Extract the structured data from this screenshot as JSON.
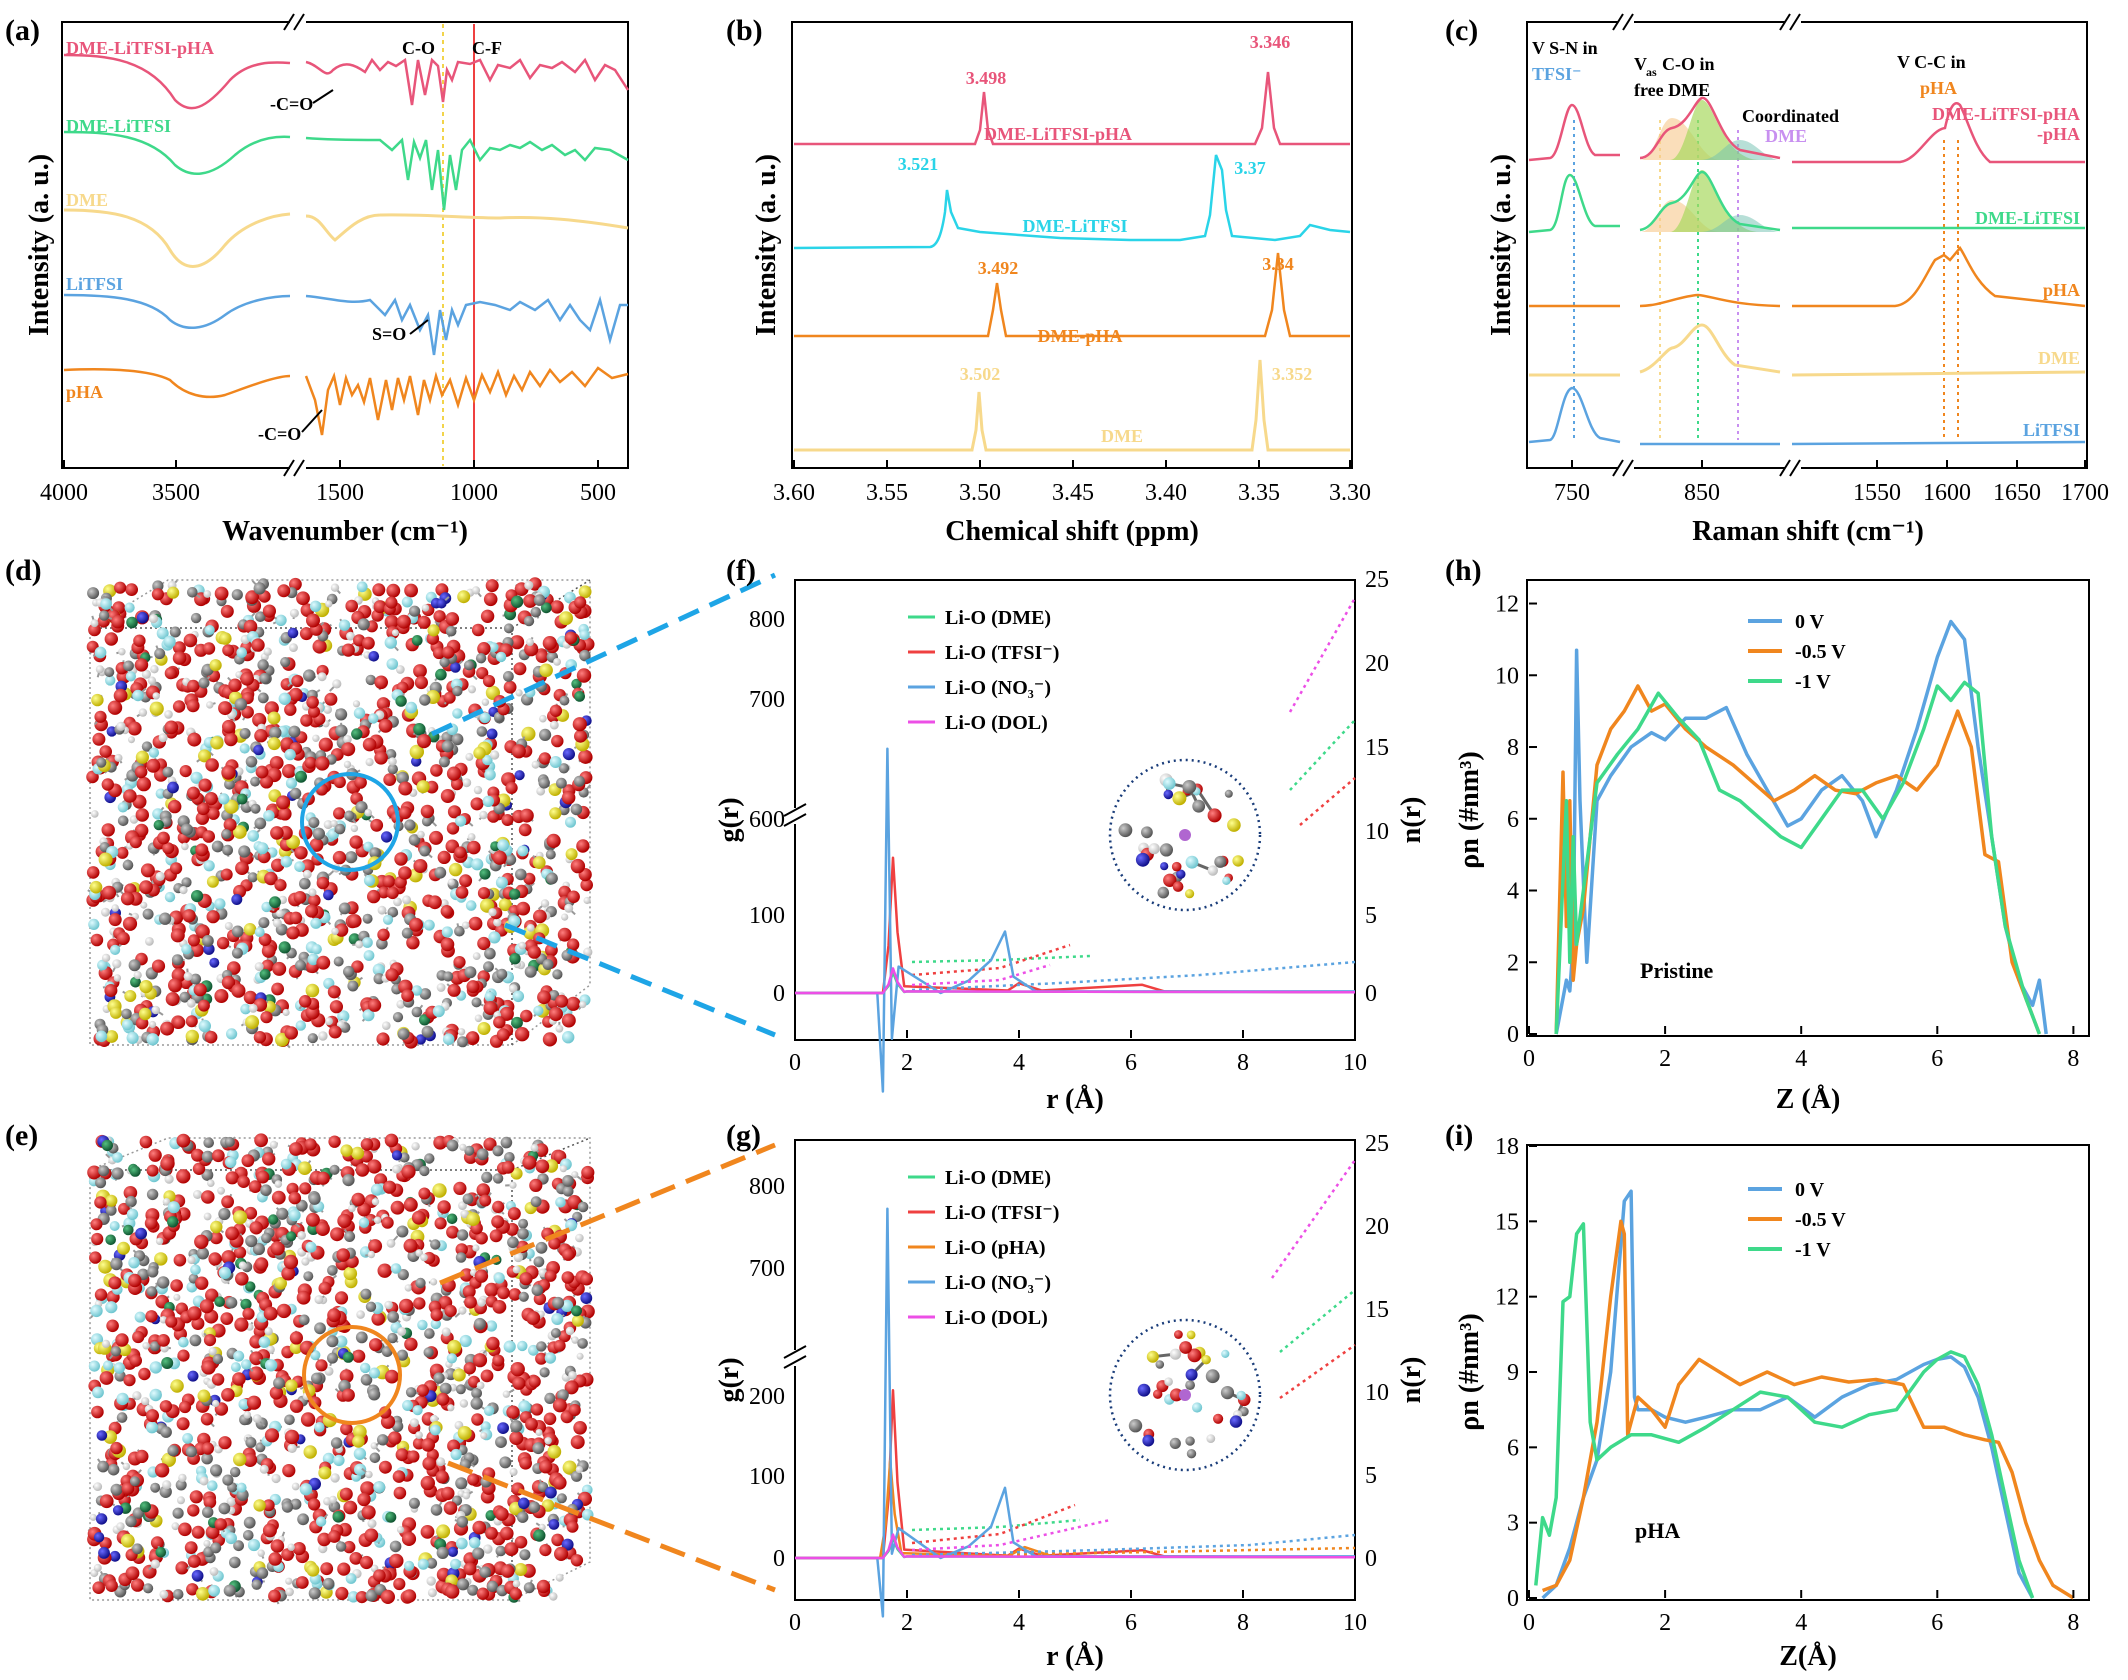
{
  "colors": {
    "pink": "#e8557a",
    "green": "#3ed98a",
    "yellow": "#f7d98c",
    "blue": "#5ba3e0",
    "orange": "#f0861e",
    "red": "#ef4040",
    "cyan": "#2ad4e8",
    "magenta": "#ec4fe6",
    "pinkB": "#e8557a",
    "oxygen": "#e11a1a",
    "carbon": "#888888",
    "hydrogen": "#eeeeee",
    "fluorine": "#a6e8f0",
    "sulfur": "#f2e200",
    "nitrogen": "#1a1acc",
    "lithium": "#1c8a4c"
  },
  "panels": {
    "a": "(a)",
    "b": "(b)",
    "c": "(c)",
    "d": "(d)",
    "e": "(e)",
    "f": "(f)",
    "g": "(g)",
    "h": "(h)",
    "i": "(i)"
  },
  "chart_data": [
    {
      "id": "a",
      "type": "line",
      "xlabel": "Wavenumber (cm⁻¹)",
      "ylabel": "Intensity (a. u.)",
      "xticks": [
        "4000",
        "3500",
        "1500",
        "1000",
        "500"
      ],
      "series": [
        {
          "name": "DME-LiTFSI-pHA",
          "color": "pink"
        },
        {
          "name": "DME-LiTFSI",
          "color": "green"
        },
        {
          "name": "DME",
          "color": "yellow"
        },
        {
          "name": "LiTFSI",
          "color": "blue"
        },
        {
          "name": "pHA",
          "color": "orange"
        }
      ],
      "annotations": [
        "C-O",
        "C-F",
        "-C=O",
        "S=O",
        "-C=O"
      ]
    },
    {
      "id": "b",
      "type": "line",
      "xlabel": "Chemical shift (ppm)",
      "ylabel": "Intensity (a. u.)",
      "xlim": [
        3.6,
        3.3
      ],
      "xticks": [
        "3.60",
        "3.55",
        "3.50",
        "3.45",
        "3.40",
        "3.35",
        "3.30"
      ],
      "series": [
        {
          "name": "DME-LiTFSI-pHA",
          "color": "pink",
          "peaks": [
            3.498,
            3.346
          ],
          "peak_labels": [
            "3.498",
            "3.346"
          ]
        },
        {
          "name": "DME-LiTFSI",
          "color": "cyan",
          "peaks": [
            3.521,
            3.37
          ],
          "peak_labels": [
            "3.521",
            "3.37"
          ]
        },
        {
          "name": "DME-pHA",
          "color": "orange",
          "peaks": [
            3.492,
            3.34
          ],
          "peak_labels": [
            "3.492",
            "3.34"
          ]
        },
        {
          "name": "DME",
          "color": "yellow",
          "peaks": [
            3.502,
            3.352
          ],
          "peak_labels": [
            "3.502",
            "3.352"
          ]
        }
      ]
    },
    {
      "id": "c",
      "type": "line",
      "xlabel": "Raman shift (cm⁻¹)",
      "ylabel": "Intensity (a. u.)",
      "xticks": [
        "750",
        "850",
        "1550",
        "1600",
        "1650",
        "1700"
      ],
      "series": [
        {
          "name": "DME-LiTFSI-pHA",
          "color": "pink"
        },
        {
          "name": "DME-LiTFSI",
          "color": "green"
        },
        {
          "name": "pHA",
          "color": "orange"
        },
        {
          "name": "DME",
          "color": "yellow"
        },
        {
          "name": "LiTFSI",
          "color": "blue"
        }
      ],
      "annotations": [
        "V S-N in",
        "TFSI⁻",
        "V",
        "as",
        "C-O in",
        "free DME",
        "Coordinated",
        "DME",
        "V C-C in",
        "pHA"
      ]
    },
    {
      "id": "f",
      "type": "line",
      "xlabel": "r (Å)",
      "ylabel": "g(r)",
      "y2label": "n(r)",
      "xlim": [
        0,
        10
      ],
      "xticks": [
        "0",
        "2",
        "4",
        "6",
        "8",
        "10"
      ],
      "yticks_upper": [
        "600",
        "700",
        "800"
      ],
      "yticks_lower": [
        "0",
        "100"
      ],
      "y2ticks": [
        "0",
        "5",
        "10",
        "15",
        "20",
        "25"
      ],
      "series": [
        {
          "name": "Li-O (DME)",
          "color": "green",
          "peak_r": 1.75,
          "peak_g": 25
        },
        {
          "name": "Li-O (TFSI⁻)",
          "color": "red",
          "peak_r": 1.75,
          "peak_g": 165
        },
        {
          "name": "Li-O (NO₃⁻)",
          "color": "blue",
          "peak_r": 1.65,
          "peak_g": 643
        },
        {
          "name": "Li-O (DOL)",
          "color": "magenta",
          "peak_r": 1.75,
          "peak_g": 30
        }
      ]
    },
    {
      "id": "g",
      "type": "line",
      "xlabel": "r (Å)",
      "ylabel": "g(r)",
      "y2label": "n(r)",
      "xlim": [
        0,
        10
      ],
      "xticks": [
        "0",
        "2",
        "4",
        "6",
        "8",
        "10"
      ],
      "yticks_upper": [
        "700",
        "800"
      ],
      "yticks_lower": [
        "0",
        "100",
        "200"
      ],
      "y2ticks": [
        "0",
        "5",
        "10",
        "15",
        "20",
        "25"
      ],
      "series": [
        {
          "name": "Li-O (DME)",
          "color": "green",
          "peak_r": 1.75,
          "peak_g": 25
        },
        {
          "name": "Li-O (TFSI⁻)",
          "color": "red",
          "peak_r": 1.75,
          "peak_g": 215
        },
        {
          "name": "Li-O (pHA)",
          "color": "orange",
          "peak_r": 1.7,
          "peak_g": 125
        },
        {
          "name": "Li-O (NO₃⁻)",
          "color": "blue",
          "peak_r": 1.65,
          "peak_g": 765
        },
        {
          "name": "Li-O (DOL)",
          "color": "magenta",
          "peak_r": 1.75,
          "peak_g": 30
        }
      ]
    },
    {
      "id": "h",
      "type": "line",
      "xlabel": "Z (Å)",
      "ylabel": "ρn (#nm³)",
      "xlim": [
        0,
        8.2
      ],
      "ylim": [
        0,
        12.6
      ],
      "xticks": [
        "0",
        "2",
        "4",
        "6",
        "8"
      ],
      "yticks": [
        "0",
        "2",
        "4",
        "6",
        "8",
        "10",
        "12"
      ],
      "annotation": "Pristine",
      "series": [
        {
          "name": "0 V",
          "color": "blue",
          "x": [
            0.4,
            0.55,
            0.6,
            0.65,
            0.7,
            0.75,
            0.85,
            1.0,
            1.2,
            1.5,
            1.8,
            2.0,
            2.3,
            2.6,
            2.9,
            3.2,
            3.5,
            3.8,
            4.0,
            4.3,
            4.6,
            4.9,
            5.1,
            5.4,
            5.7,
            6.0,
            6.2,
            6.4,
            6.6,
            6.8,
            7.0,
            7.2,
            7.4,
            7.5,
            7.6
          ],
          "y": [
            0,
            1.5,
            1.2,
            2.5,
            10.7,
            6.5,
            2.0,
            6.5,
            7.2,
            8.0,
            8.4,
            8.2,
            8.8,
            8.8,
            9.1,
            7.8,
            6.8,
            5.8,
            6.0,
            6.8,
            7.2,
            6.5,
            5.5,
            6.8,
            8.5,
            10.5,
            11.5,
            11.0,
            8.0,
            5.5,
            3.0,
            1.5,
            0.8,
            1.5,
            0
          ]
        },
        {
          "name": "-0.5 V",
          "color": "orange",
          "x": [
            0.4,
            0.5,
            0.55,
            0.6,
            0.65,
            0.7,
            0.8,
            1.0,
            1.2,
            1.4,
            1.6,
            1.8,
            2.0,
            2.3,
            2.6,
            3.0,
            3.3,
            3.6,
            3.9,
            4.2,
            4.5,
            4.8,
            5.1,
            5.4,
            5.7,
            6.0,
            6.3,
            6.5,
            6.7,
            6.9,
            7.1,
            7.3,
            7.5
          ],
          "y": [
            0,
            7.3,
            3.0,
            6.5,
            1.5,
            2.5,
            3.5,
            7.5,
            8.5,
            9.0,
            9.7,
            9.0,
            9.2,
            8.5,
            8.0,
            7.5,
            7.0,
            6.5,
            6.8,
            7.2,
            6.8,
            6.7,
            7.0,
            7.2,
            6.8,
            7.5,
            9.0,
            8.0,
            5.0,
            4.8,
            2.0,
            1.0,
            0
          ]
        },
        {
          "name": "-1 V",
          "color": "green",
          "x": [
            0.4,
            0.55,
            0.6,
            0.65,
            0.7,
            0.8,
            1.0,
            1.3,
            1.6,
            1.9,
            2.2,
            2.5,
            2.8,
            3.1,
            3.4,
            3.7,
            4.0,
            4.3,
            4.6,
            4.9,
            5.2,
            5.5,
            5.8,
            6.0,
            6.2,
            6.4,
            6.6,
            6.8,
            7.0,
            7.3,
            7.5
          ],
          "y": [
            0,
            6.5,
            2.0,
            5.5,
            2.5,
            4.0,
            7.0,
            7.8,
            8.5,
            9.5,
            8.8,
            8.2,
            6.8,
            6.5,
            6.0,
            5.5,
            5.2,
            6.0,
            6.8,
            6.8,
            6.0,
            7.0,
            8.5,
            9.7,
            9.3,
            9.8,
            9.5,
            5.5,
            3.0,
            1.0,
            0
          ]
        }
      ]
    },
    {
      "id": "i",
      "type": "line",
      "xlabel": "Z(Å)",
      "ylabel": "ρn (#nm³)",
      "xlim": [
        0,
        8.2
      ],
      "ylim": [
        0,
        18
      ],
      "xticks": [
        "0",
        "2",
        "4",
        "6",
        "8"
      ],
      "yticks": [
        "0",
        "3",
        "6",
        "9",
        "12",
        "15",
        "18"
      ],
      "annotation": "pHA",
      "series": [
        {
          "name": "0 V",
          "color": "blue",
          "x": [
            0.2,
            0.4,
            0.6,
            0.8,
            1.0,
            1.2,
            1.4,
            1.5,
            1.55,
            1.6,
            1.8,
            2.0,
            2.3,
            2.6,
            3.0,
            3.4,
            3.8,
            4.2,
            4.6,
            5.0,
            5.4,
            5.8,
            6.0,
            6.2,
            6.4,
            6.6,
            6.8,
            7.0,
            7.2,
            7.4
          ],
          "y": [
            0,
            0.5,
            2.0,
            4.0,
            5.5,
            9.0,
            15.8,
            16.2,
            8.0,
            7.5,
            7.5,
            7.2,
            7.0,
            7.2,
            7.5,
            7.5,
            8.0,
            7.2,
            8.0,
            8.5,
            8.7,
            9.3,
            9.5,
            9.6,
            9.2,
            8.0,
            6.0,
            3.5,
            1.0,
            0
          ]
        },
        {
          "name": "-0.5 V",
          "color": "orange",
          "x": [
            0.2,
            0.4,
            0.6,
            0.8,
            1.0,
            1.2,
            1.35,
            1.4,
            1.45,
            1.6,
            1.8,
            2.0,
            2.2,
            2.5,
            2.8,
            3.1,
            3.5,
            3.9,
            4.3,
            4.7,
            5.1,
            5.5,
            5.8,
            6.1,
            6.4,
            6.7,
            6.9,
            7.1,
            7.3,
            7.5,
            7.7,
            8.0
          ],
          "y": [
            0.3,
            0.5,
            1.5,
            4.0,
            7.0,
            12.0,
            15.0,
            14.5,
            6.5,
            8.0,
            7.5,
            6.8,
            8.5,
            9.5,
            9.0,
            8.5,
            9.0,
            8.5,
            8.8,
            8.6,
            8.7,
            8.5,
            6.8,
            6.8,
            6.5,
            6.3,
            6.2,
            5.0,
            3.0,
            1.5,
            0.5,
            0
          ]
        },
        {
          "name": "-1 V",
          "color": "green",
          "x": [
            0.1,
            0.2,
            0.3,
            0.4,
            0.5,
            0.6,
            0.7,
            0.8,
            0.9,
            1.0,
            1.2,
            1.5,
            1.8,
            2.2,
            2.6,
            3.0,
            3.4,
            3.8,
            4.2,
            4.6,
            5.0,
            5.4,
            5.8,
            6.0,
            6.2,
            6.4,
            6.6,
            6.8,
            7.0,
            7.2,
            7.4
          ],
          "y": [
            0.5,
            3.2,
            2.5,
            4.0,
            11.8,
            12.0,
            14.5,
            14.9,
            7.0,
            5.5,
            6.0,
            6.5,
            6.5,
            6.2,
            6.8,
            7.5,
            8.2,
            8.0,
            7.0,
            6.8,
            7.3,
            7.5,
            9.0,
            9.5,
            9.8,
            9.6,
            8.5,
            6.5,
            4.0,
            1.5,
            0
          ]
        }
      ]
    }
  ]
}
